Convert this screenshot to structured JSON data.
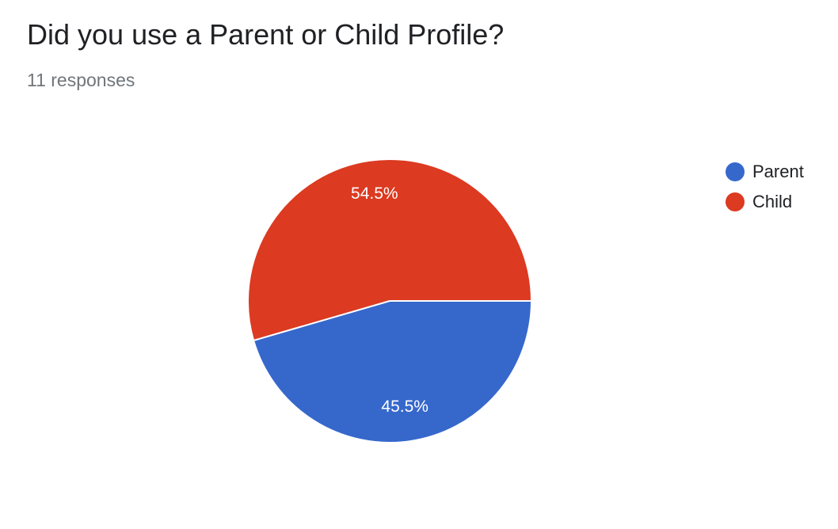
{
  "title": "Did you use a Parent or Child Profile?",
  "subtitle": "11 responses",
  "chart_data": {
    "type": "pie",
    "title": "Did you use a Parent or Child Profile?",
    "subtitle": "11 responses",
    "categories": [
      "Parent",
      "Child"
    ],
    "values": [
      45.5,
      54.5
    ],
    "value_labels": [
      "45.5%",
      "54.5%"
    ],
    "colors": [
      "#3668cc",
      "#dc3a21"
    ],
    "legend_position": "top-right"
  },
  "legend": [
    {
      "label": "Parent",
      "color": "#3668cc"
    },
    {
      "label": "Child",
      "color": "#dc3a21"
    }
  ]
}
